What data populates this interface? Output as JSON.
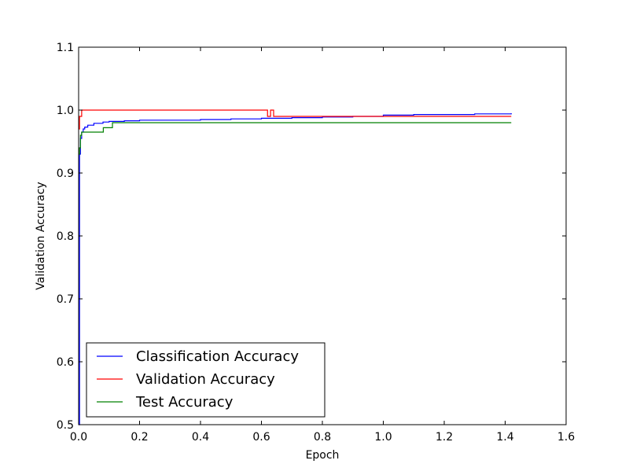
{
  "chart_data": {
    "type": "line",
    "title": "",
    "xlabel": "Epoch",
    "ylabel": "Validation Accuracy",
    "xlim": [
      0.0,
      1.6
    ],
    "ylim": [
      0.5,
      1.1
    ],
    "x_ticks": [
      "0.0",
      "0.2",
      "0.4",
      "0.6",
      "0.8",
      "1.0",
      "1.2",
      "1.4",
      "1.6"
    ],
    "y_ticks": [
      "0.5",
      "0.6",
      "0.7",
      "0.8",
      "0.9",
      "1.0",
      "1.1"
    ],
    "grid": false,
    "legend_position": "lower-left",
    "series": [
      {
        "name": "Classification Accuracy",
        "color": "#0000ff",
        "x": [
          0.0,
          0.003,
          0.006,
          0.01,
          0.015,
          0.02,
          0.03,
          0.05,
          0.08,
          0.1,
          0.15,
          0.2,
          0.25,
          0.3,
          0.4,
          0.5,
          0.6,
          0.7,
          0.8,
          0.9,
          1.0,
          1.1,
          1.2,
          1.3,
          1.42
        ],
        "y": [
          0.5,
          0.93,
          0.955,
          0.965,
          0.97,
          0.973,
          0.976,
          0.979,
          0.981,
          0.982,
          0.983,
          0.984,
          0.984,
          0.984,
          0.985,
          0.986,
          0.987,
          0.988,
          0.989,
          0.99,
          0.992,
          0.993,
          0.993,
          0.994,
          0.995
        ]
      },
      {
        "name": "Validation Accuracy",
        "color": "#ff0000",
        "x": [
          0.0,
          0.003,
          0.006,
          0.01,
          0.6,
          0.62,
          0.63,
          0.64,
          0.8,
          1.0,
          1.2,
          1.42
        ],
        "y": [
          0.97,
          0.99,
          0.99,
          1.0,
          1.0,
          0.99,
          1.0,
          0.99,
          0.99,
          0.99,
          0.99,
          0.99
        ]
      },
      {
        "name": "Test Accuracy",
        "color": "#008000",
        "x": [
          0.0,
          0.003,
          0.006,
          0.01,
          0.08,
          0.081,
          0.11,
          0.111,
          0.5,
          1.0,
          1.42
        ],
        "y": [
          0.93,
          0.94,
          0.96,
          0.965,
          0.965,
          0.972,
          0.972,
          0.98,
          0.98,
          0.98,
          0.98
        ]
      }
    ]
  }
}
